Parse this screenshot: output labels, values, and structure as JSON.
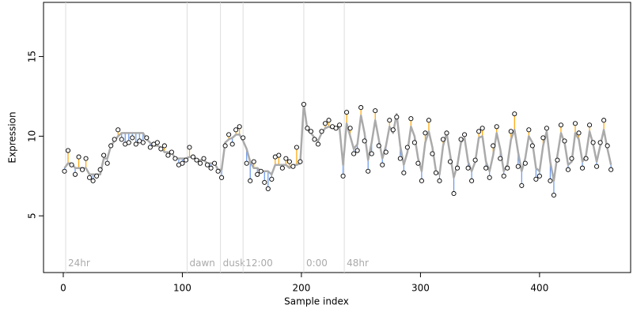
{
  "chart_data": {
    "type": "scatter",
    "x_label": "Sample index",
    "y_label": "Expression",
    "xlim": [
      -16.6,
      476.5
    ],
    "ylim": [
      1.44,
      18.4
    ],
    "xticks": [
      0,
      100,
      200,
      300,
      400
    ],
    "yticks": [
      5,
      10,
      15
    ],
    "point_color": "#000000",
    "fit_color": "#aaaaaa",
    "above_color": "#ffa500",
    "below_color": "#6495ed",
    "event_line_color": "#dddddd",
    "events": [
      {
        "x": 2,
        "label": "24hr"
      },
      {
        "x": 104,
        "label": "dawn"
      },
      {
        "x": 132,
        "label": "dusk"
      },
      {
        "x": 151,
        "label": "12:00"
      },
      {
        "x": 202,
        "label": "0:00"
      },
      {
        "x": 236,
        "label": "48hr"
      }
    ],
    "event_label_y": 2.0,
    "x": [
      1,
      4,
      7,
      10,
      13,
      16,
      19,
      22,
      25,
      28,
      31,
      34,
      37,
      40,
      43,
      46,
      49,
      52,
      55,
      58,
      61,
      64,
      67,
      70,
      73,
      76,
      79,
      82,
      85,
      88,
      91,
      94,
      97,
      100,
      103,
      106,
      109,
      112,
      115,
      118,
      121,
      124,
      127,
      130,
      133,
      136,
      139,
      142,
      145,
      148,
      151,
      154,
      157,
      160,
      163,
      166,
      169,
      172,
      175,
      178,
      181,
      184,
      187,
      190,
      193,
      196,
      199,
      202,
      205,
      208,
      211,
      214,
      217,
      220,
      223,
      226,
      229,
      232,
      235,
      238,
      241,
      244,
      247,
      250,
      253,
      256,
      259,
      262,
      265,
      268,
      271,
      274,
      277,
      280,
      283,
      286,
      289,
      292,
      295,
      298,
      301,
      304,
      307,
      310,
      313,
      316,
      319,
      322,
      325,
      328,
      331,
      334,
      337,
      340,
      343,
      346,
      349,
      352,
      355,
      358,
      361,
      364,
      367,
      370,
      373,
      376,
      379,
      382,
      385,
      388,
      391,
      394,
      397,
      400,
      403,
      406,
      409,
      412,
      415,
      418,
      421,
      424,
      427,
      430,
      433,
      436,
      439,
      442,
      445,
      448,
      451,
      454,
      457,
      460
    ],
    "values": [
      7.8,
      9.1,
      8.2,
      7.6,
      8.7,
      7.9,
      8.6,
      7.4,
      7.2,
      7.5,
      7.9,
      8.8,
      8.3,
      9.4,
      9.8,
      10.4,
      9.8,
      9.5,
      9.6,
      9.9,
      9.5,
      9.7,
      9.6,
      9.9,
      9.3,
      9.5,
      9.6,
      9.2,
      9.4,
      8.8,
      9.0,
      8.6,
      8.2,
      8.3,
      8.5,
      9.3,
      8.7,
      8.5,
      8.3,
      8.6,
      8.2,
      8.0,
      8.3,
      7.8,
      7.4,
      9.4,
      10.1,
      9.5,
      10.4,
      10.6,
      9.9,
      8.3,
      7.2,
      8.4,
      7.6,
      7.8,
      7.1,
      6.7,
      7.3,
      8.7,
      8.8,
      8.0,
      8.6,
      8.4,
      8.1,
      9.3,
      8.4,
      12.0,
      10.5,
      10.3,
      9.8,
      9.5,
      10.3,
      10.8,
      11.0,
      10.6,
      10.5,
      10.7,
      7.5,
      11.5,
      10.5,
      8.9,
      9.1,
      11.8,
      9.7,
      7.8,
      8.9,
      11.6,
      9.4,
      8.2,
      9.0,
      11.0,
      10.4,
      11.2,
      8.6,
      7.7,
      9.3,
      11.1,
      9.6,
      8.3,
      7.2,
      10.2,
      11.0,
      8.9,
      7.7,
      7.2,
      9.8,
      10.2,
      8.4,
      6.4,
      8.0,
      9.8,
      10.1,
      8.0,
      7.2,
      8.5,
      10.3,
      10.5,
      8.0,
      7.4,
      9.4,
      10.6,
      8.6,
      7.5,
      8.0,
      10.3,
      11.4,
      8.1,
      6.9,
      8.3,
      10.4,
      9.4,
      7.3,
      7.5,
      9.9,
      10.5,
      7.2,
      6.3,
      8.5,
      10.7,
      9.7,
      7.9,
      8.6,
      10.8,
      10.2,
      8.0,
      8.6,
      10.7,
      9.6,
      8.1,
      9.6,
      11.0,
      9.4,
      7.9
    ],
    "fitted": [
      8.0,
      8.3,
      8.3,
      8.0,
      8.0,
      8.0,
      8.0,
      7.6,
      7.6,
      7.6,
      7.6,
      8.6,
      8.6,
      9.4,
      9.7,
      10.0,
      10.2,
      10.2,
      10.2,
      10.2,
      10.2,
      10.2,
      10.2,
      9.8,
      9.6,
      9.4,
      9.4,
      9.3,
      9.0,
      9.0,
      9.0,
      8.6,
      8.6,
      8.6,
      8.6,
      8.7,
      8.7,
      8.5,
      8.5,
      8.5,
      8.3,
      8.3,
      8.3,
      7.9,
      7.9,
      9.6,
      9.8,
      9.9,
      10.1,
      10.1,
      9.7,
      9.2,
      8.4,
      8.0,
      8.0,
      7.8,
      7.8,
      7.8,
      7.6,
      8.2,
      8.2,
      8.2,
      8.2,
      8.0,
      8.2,
      8.2,
      8.3,
      12.0,
      10.4,
      10.2,
      9.9,
      9.7,
      10.2,
      10.5,
      10.6,
      10.5,
      10.5,
      10.5,
      8.2,
      10.8,
      10.0,
      9.2,
      9.5,
      11.3,
      10.2,
      8.5,
      9.6,
      11.0,
      9.8,
      8.6,
      9.4,
      10.6,
      10.2,
      11.4,
      9.4,
      8.2,
      9.0,
      10.6,
      10.0,
      8.6,
      7.8,
      9.6,
      10.3,
      9.3,
      7.8,
      7.6,
      9.4,
      10.2,
      8.8,
      7.4,
      8.2,
      9.6,
      9.9,
      8.4,
      7.8,
      8.4,
      9.9,
      10.0,
      8.4,
      7.8,
      8.8,
      10.2,
      9.2,
      7.8,
      8.2,
      9.8,
      10.4,
      9.0,
      7.8,
      8.6,
      10.0,
      9.6,
      8.0,
      7.8,
      9.4,
      10.3,
      8.4,
      7.2,
      8.8,
      10.2,
      9.6,
      8.2,
      8.4,
      10.2,
      9.8,
      8.4,
      8.8,
      10.3,
      9.5,
      8.4,
      9.4,
      10.4,
      9.2,
      8.2
    ]
  }
}
